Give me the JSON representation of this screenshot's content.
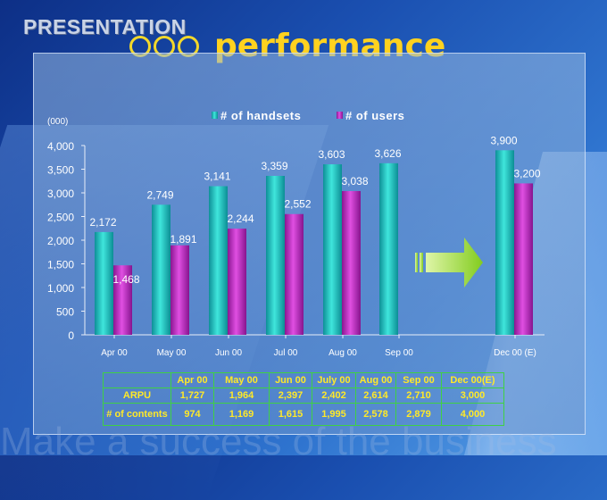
{
  "slide": {
    "brand": "PRESENTATION",
    "title": "performance",
    "watermark": "Make a success of the business"
  },
  "colors": {
    "handsets": "#19c6c2",
    "users": "#c72ac8",
    "title": "#ffd21f",
    "arrow": "#8fd62a",
    "table_text": "#ffe928",
    "table_border": "#3fd143"
  },
  "chart_data": {
    "type": "bar",
    "unit_label": "(000)",
    "categories": [
      "Apr 00",
      "May 00",
      "Jun 00",
      "Jul 00",
      "Aug 00",
      "Sep 00",
      "Dec 00 (E)"
    ],
    "series": [
      {
        "name": "# of handsets",
        "values": [
          2172,
          2749,
          3141,
          3359,
          3603,
          3626,
          3900
        ],
        "labels": [
          "2,172",
          "2,749",
          "3,141",
          "3,359",
          "3,603",
          "3,626",
          "3,900"
        ]
      },
      {
        "name": "# of users",
        "values": [
          1468,
          1891,
          2244,
          2552,
          3038,
          null,
          3200
        ],
        "labels": [
          "1,468",
          "1,891",
          "2,244",
          "2,552",
          "3,038",
          "",
          "3,200"
        ]
      }
    ],
    "ylim": [
      0,
      4000
    ],
    "yticks": [
      "0",
      "500",
      "1,000",
      "1,500",
      "2,000",
      "2,500",
      "3,000",
      "3,500",
      "4,000"
    ],
    "legend": "top",
    "grid": false
  },
  "table": {
    "headers": [
      "",
      "Apr 00",
      "May 00",
      "Jun 00",
      "July 00",
      "Aug 00",
      "Sep 00",
      "Dec 00(E)"
    ],
    "rows": [
      {
        "label": "ARPU",
        "values": [
          "1,727",
          "1,964",
          "2,397",
          "2,402",
          "2,614",
          "2,710",
          "3,000"
        ]
      },
      {
        "label": "# of contents",
        "values": [
          "974",
          "1,169",
          "1,615",
          "1,995",
          "2,578",
          "2,879",
          "4,000"
        ]
      }
    ]
  }
}
